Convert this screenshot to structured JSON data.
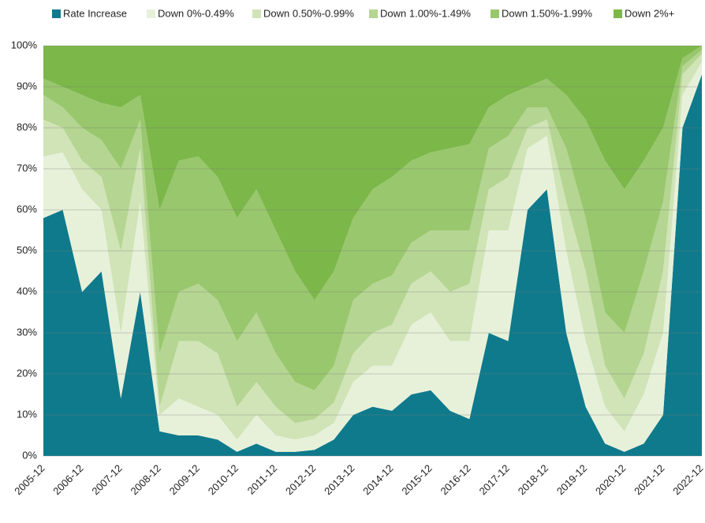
{
  "chart_data": {
    "type": "stacked-area",
    "categories": [
      "2005-12",
      null,
      "2006-12",
      null,
      "2007-12",
      null,
      "2008-12",
      null,
      "2009-12",
      null,
      "2010-12",
      null,
      "2011-12",
      null,
      "2012-12",
      null,
      "2013-12",
      null,
      "2014-12",
      null,
      "2015-12",
      null,
      "2016-12",
      null,
      "2017-12",
      null,
      "2018-12",
      null,
      "2019-12",
      null,
      "2020-12",
      null,
      "2021-12",
      null,
      "2022-12"
    ],
    "series": [
      {
        "name": "Rate Increase",
        "color": "#0f7a8c",
        "values": [
          58,
          60,
          40,
          45,
          14,
          40,
          6,
          5,
          5,
          4,
          1,
          3,
          1,
          1,
          1.5,
          4,
          10,
          12,
          11,
          15,
          16,
          11,
          9,
          30,
          28,
          60,
          65,
          30,
          12,
          3,
          1,
          3,
          10,
          80,
          93
        ]
      },
      {
        "name": "Down 0%-0.49%",
        "color": "#e7f1da",
        "values": [
          15,
          14,
          25,
          15,
          16,
          22,
          4,
          9,
          7,
          6,
          3,
          7,
          4,
          3,
          3.5,
          4,
          8,
          10,
          11,
          17,
          19,
          17,
          19,
          25,
          27,
          15,
          13,
          20,
          16,
          9,
          5,
          12,
          20,
          8,
          3
        ]
      },
      {
        "name": "Down 0.50%-0.99%",
        "color": "#d0e4b7",
        "values": [
          9,
          6,
          7,
          8,
          20,
          13,
          2,
          14,
          16,
          15,
          8,
          8,
          7,
          4,
          4,
          5,
          7,
          8,
          10,
          10,
          10,
          12,
          14,
          10,
          13,
          5,
          4,
          12,
          17,
          10,
          8,
          10,
          15,
          5,
          2
        ]
      },
      {
        "name": "Down 1.00%-1.49%",
        "color": "#b5d592",
        "values": [
          6,
          5,
          8,
          9,
          20,
          7,
          13,
          12,
          14,
          13,
          16,
          17,
          13,
          10,
          7,
          9,
          13,
          12,
          12,
          10,
          10,
          15,
          13,
          10,
          10,
          5,
          3,
          13,
          13,
          13,
          16,
          20,
          17,
          2,
          1
        ]
      },
      {
        "name": "Down 1.50%-1.99%",
        "color": "#99c76d",
        "values": [
          4,
          5,
          8,
          9,
          15,
          6,
          35,
          32,
          31,
          30,
          30,
          30,
          30,
          27,
          22,
          23,
          20,
          23,
          24,
          20,
          19,
          20,
          21,
          10,
          10,
          5,
          7,
          13,
          24,
          37,
          35,
          27,
          18,
          2,
          1
        ]
      },
      {
        "name": "Down 2%+",
        "color": "#7cb74a",
        "values": [
          8,
          10,
          12,
          14,
          15,
          12,
          40,
          28,
          27,
          32,
          42,
          35,
          45,
          55,
          62,
          55,
          42,
          35,
          32,
          28,
          26,
          25,
          24,
          15,
          12,
          10,
          8,
          12,
          18,
          28,
          35,
          28,
          20,
          3,
          0
        ]
      }
    ],
    "ylim": [
      0,
      100
    ],
    "yticks": [
      {
        "value": 0,
        "label": "0%"
      },
      {
        "value": 10,
        "label": "10%"
      },
      {
        "value": 20,
        "label": "20%"
      },
      {
        "value": 30,
        "label": "30%"
      },
      {
        "value": 40,
        "label": "40%"
      },
      {
        "value": 50,
        "label": "50%"
      },
      {
        "value": 60,
        "label": "60%"
      },
      {
        "value": 70,
        "label": "70%"
      },
      {
        "value": 80,
        "label": "80%"
      },
      {
        "value": 90,
        "label": "90%"
      },
      {
        "value": 100,
        "label": "100%"
      }
    ],
    "grid": true
  }
}
